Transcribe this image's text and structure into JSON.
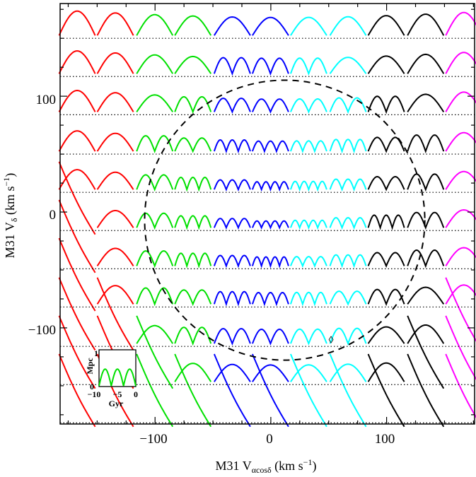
{
  "chart_data": {
    "type": "line",
    "xlabel": "M31 V",
    "xlabel_sub": "αcosδ",
    "ylabel": "M31 V",
    "ylabel_sub": "δ",
    "unit": "(km s",
    "unit_exp": "−1",
    "unit_close": ")",
    "xlim": [
      -182,
      176
    ],
    "ylim": [
      -183,
      180
    ],
    "x_ticks": [
      -100,
      0,
      100
    ],
    "x_tick_labels": [
      "−100",
      "0",
      "100"
    ],
    "y_ticks": [
      -100,
      0,
      100
    ],
    "y_tick_labels": [
      "−100",
      "0",
      "100"
    ],
    "grid": false,
    "colors": [
      "#ff0000",
      "#00e000",
      "#0000ff",
      "#00ffff",
      "#000000",
      "#ff00ff"
    ],
    "grid_columns_x": [
      -167,
      -134,
      -100,
      -67,
      -33,
      0,
      33,
      67,
      100,
      134,
      167
    ],
    "grid_rows_y": [
      150,
      117,
      84,
      50,
      17,
      -16,
      -49,
      -82,
      -116,
      -149,
      -182
    ],
    "circle": {
      "center_x": 12,
      "center_y": -7,
      "radius": 121
    },
    "marker": {
      "x": 52,
      "y": -110,
      "label": "◊"
    },
    "inset": {
      "xlabel": "Gyr",
      "ylabel": "Mpc",
      "x_tick_labels": [
        "−10",
        "−5",
        "0"
      ],
      "y_tick_labels": [
        "0",
        "1"
      ],
      "xlim": [
        -10,
        0
      ],
      "ylim": [
        0,
        1.2
      ]
    }
  }
}
